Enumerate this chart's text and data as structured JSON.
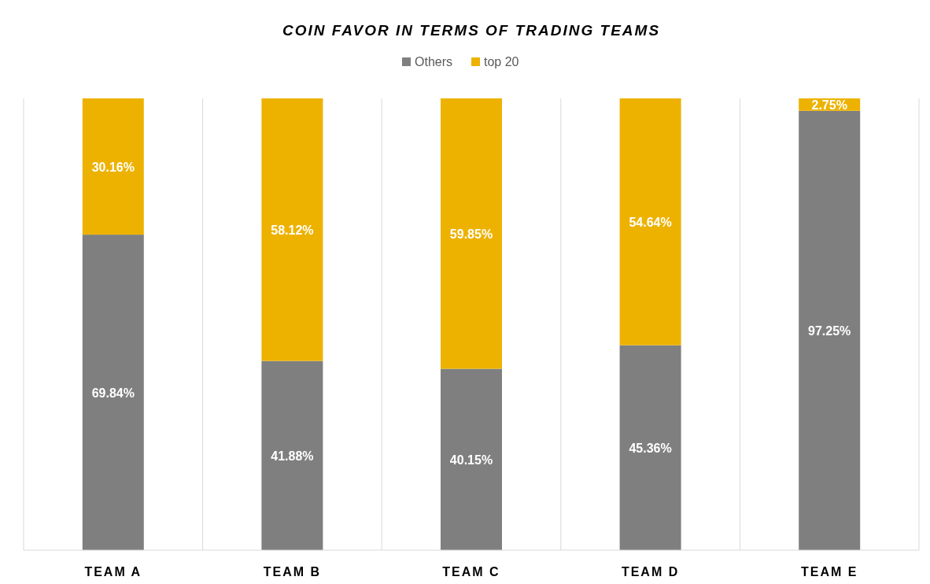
{
  "chart_data": {
    "type": "bar",
    "title": "COIN FAVOR IN TERMS OF TRADING TEAMS",
    "categories": [
      "TEAM A",
      "TEAM B",
      "TEAM C",
      "TEAM D",
      "TEAM E"
    ],
    "stacked": true,
    "grid": "x",
    "legend": "top",
    "series": [
      {
        "name": "Others",
        "color": "#7f7f7f",
        "values": [
          69.84,
          41.88,
          40.15,
          45.36,
          97.25
        ],
        "value_labels": [
          "69.84%",
          "41.88%",
          "40.15%",
          "45.36%",
          "97.25%"
        ]
      },
      {
        "name": "top 20",
        "color": "#edb200",
        "values": [
          30.16,
          58.12,
          59.85,
          54.64,
          2.75
        ],
        "value_labels": [
          "30.16%",
          "58.12%",
          "59.85%",
          "54.64%",
          "2.75%"
        ]
      }
    ]
  }
}
